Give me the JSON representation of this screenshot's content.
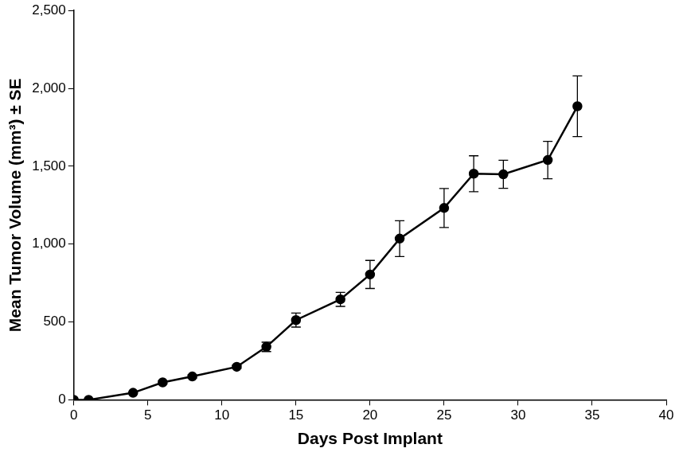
{
  "chart_data": {
    "type": "line",
    "x_label": "Days Post Implant",
    "y_label": "Mean Tumor Volume (mm³) ± SE",
    "x": [
      0,
      1,
      4,
      6,
      8,
      11,
      13,
      15,
      18,
      20,
      22,
      25,
      27,
      29,
      32,
      34
    ],
    "values": [
      0,
      0,
      45,
      112,
      150,
      212,
      340,
      512,
      645,
      805,
      1035,
      1232,
      1452,
      1448,
      1540,
      1885
    ],
    "errors": [
      0,
      0,
      5,
      10,
      10,
      10,
      30,
      45,
      45,
      90,
      115,
      125,
      115,
      90,
      120,
      195
    ],
    "color": "#000000",
    "marker": "circle",
    "line_style": "solid",
    "xlim": [
      0,
      40
    ],
    "xticks": [
      0,
      5,
      10,
      15,
      20,
      25,
      30,
      35,
      40
    ],
    "ylim": [
      0,
      2500
    ],
    "yticks": [
      0,
      500,
      1000,
      1500,
      2000,
      2500
    ],
    "grid": false
  }
}
